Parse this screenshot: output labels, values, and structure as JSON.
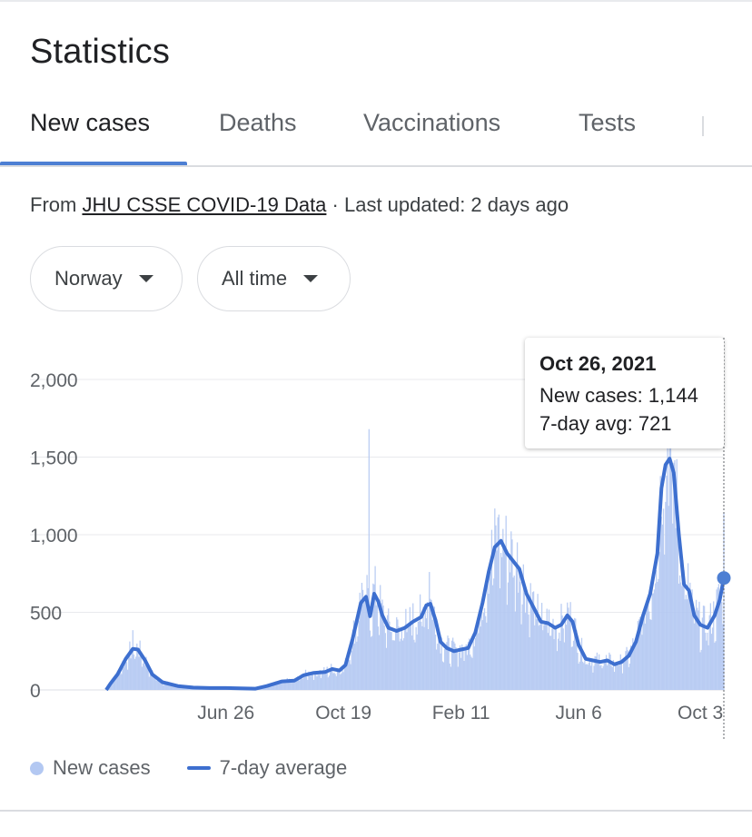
{
  "card": {
    "title": "Statistics"
  },
  "tabs": [
    {
      "label": "New cases",
      "active": true
    },
    {
      "label": "Deaths",
      "active": false
    },
    {
      "label": "Vaccinations",
      "active": false
    },
    {
      "label": "Tests",
      "active": false
    }
  ],
  "source": {
    "prefix": "From",
    "link": "JHU CSSE COVID-19 Data",
    "suffix": "· Last updated: 2 days ago"
  },
  "filters": {
    "country": "Norway",
    "range": "All time"
  },
  "tooltip": {
    "date": "Oct 26, 2021",
    "new_cases_line": "New cases: 1,144",
    "avg_line": "7-day avg: 721"
  },
  "legend": {
    "cases": "New cases",
    "avg": "7-day average"
  },
  "colors": {
    "bars": "#b3c8f2",
    "line": "#3d6fcf",
    "accent": "#4d7fd3",
    "grid": "#e8eaed"
  },
  "chart_data": {
    "type": "bar",
    "title": "",
    "xlabel": "",
    "ylabel": "",
    "ylim": [
      0,
      2000
    ],
    "yticks": [
      0,
      500,
      1000,
      1500,
      2000
    ],
    "ytick_labels": [
      "0",
      "500",
      "1,000",
      "1,500",
      "2,000"
    ],
    "xticks": [
      {
        "label": "Jun 26",
        "date": "2020-06-26"
      },
      {
        "label": "Oct 19",
        "date": "2020-10-19"
      },
      {
        "label": "Feb 11",
        "date": "2021-02-11"
      },
      {
        "label": "Jun 6",
        "date": "2021-06-06"
      },
      {
        "label": "Oct 3",
        "date": "2021-10-03"
      }
    ],
    "legend_position": "bottom-left",
    "grid": true,
    "series": [
      {
        "name": "7-day average",
        "type": "line",
        "points": [
          [
            "2020-03-01",
            0
          ],
          [
            "2020-03-05",
            40
          ],
          [
            "2020-03-12",
            100
          ],
          [
            "2020-03-20",
            200
          ],
          [
            "2020-03-27",
            265
          ],
          [
            "2020-04-01",
            260
          ],
          [
            "2020-04-08",
            190
          ],
          [
            "2020-04-15",
            100
          ],
          [
            "2020-04-25",
            50
          ],
          [
            "2020-05-10",
            25
          ],
          [
            "2020-05-25",
            15
          ],
          [
            "2020-06-10",
            12
          ],
          [
            "2020-06-26",
            12
          ],
          [
            "2020-07-10",
            10
          ],
          [
            "2020-07-25",
            8
          ],
          [
            "2020-08-05",
            25
          ],
          [
            "2020-08-20",
            55
          ],
          [
            "2020-09-01",
            60
          ],
          [
            "2020-09-10",
            95
          ],
          [
            "2020-09-20",
            110
          ],
          [
            "2020-10-01",
            115
          ],
          [
            "2020-10-08",
            135
          ],
          [
            "2020-10-15",
            125
          ],
          [
            "2020-10-21",
            160
          ],
          [
            "2020-10-28",
            330
          ],
          [
            "2020-11-05",
            560
          ],
          [
            "2020-11-10",
            600
          ],
          [
            "2020-11-14",
            475
          ],
          [
            "2020-11-18",
            620
          ],
          [
            "2020-11-22",
            570
          ],
          [
            "2020-11-26",
            480
          ],
          [
            "2020-12-02",
            400
          ],
          [
            "2020-12-10",
            380
          ],
          [
            "2020-12-18",
            400
          ],
          [
            "2020-12-26",
            440
          ],
          [
            "2021-01-03",
            470
          ],
          [
            "2021-01-08",
            545
          ],
          [
            "2021-01-12",
            555
          ],
          [
            "2021-01-17",
            450
          ],
          [
            "2021-01-22",
            310
          ],
          [
            "2021-01-28",
            270
          ],
          [
            "2021-02-04",
            250
          ],
          [
            "2021-02-11",
            260
          ],
          [
            "2021-02-18",
            270
          ],
          [
            "2021-02-25",
            370
          ],
          [
            "2021-03-04",
            560
          ],
          [
            "2021-03-10",
            760
          ],
          [
            "2021-03-16",
            920
          ],
          [
            "2021-03-22",
            960
          ],
          [
            "2021-03-28",
            880
          ],
          [
            "2021-04-03",
            830
          ],
          [
            "2021-04-09",
            780
          ],
          [
            "2021-04-16",
            620
          ],
          [
            "2021-04-23",
            530
          ],
          [
            "2021-04-30",
            440
          ],
          [
            "2021-05-07",
            430
          ],
          [
            "2021-05-14",
            400
          ],
          [
            "2021-05-20",
            420
          ],
          [
            "2021-05-26",
            480
          ],
          [
            "2021-05-31",
            440
          ],
          [
            "2021-06-06",
            290
          ],
          [
            "2021-06-13",
            200
          ],
          [
            "2021-06-20",
            190
          ],
          [
            "2021-06-27",
            180
          ],
          [
            "2021-07-04",
            190
          ],
          [
            "2021-07-11",
            165
          ],
          [
            "2021-07-18",
            180
          ],
          [
            "2021-07-25",
            220
          ],
          [
            "2021-08-01",
            310
          ],
          [
            "2021-08-08",
            480
          ],
          [
            "2021-08-15",
            620
          ],
          [
            "2021-08-22",
            880
          ],
          [
            "2021-08-26",
            1300
          ],
          [
            "2021-08-30",
            1450
          ],
          [
            "2021-09-03",
            1490
          ],
          [
            "2021-09-07",
            1400
          ],
          [
            "2021-09-12",
            1000
          ],
          [
            "2021-09-17",
            680
          ],
          [
            "2021-09-22",
            640
          ],
          [
            "2021-09-27",
            480
          ],
          [
            "2021-10-03",
            420
          ],
          [
            "2021-10-10",
            400
          ],
          [
            "2021-10-17",
            480
          ],
          [
            "2021-10-22",
            580
          ],
          [
            "2021-10-26",
            721
          ]
        ]
      }
    ],
    "bar_sample": [
      [
        "2020-03-27",
        385
      ],
      [
        "2020-11-06",
        690
      ],
      [
        "2020-11-13",
        1680
      ],
      [
        "2021-01-11",
        760
      ],
      [
        "2021-03-20",
        1130
      ],
      [
        "2021-09-01",
        1680
      ],
      [
        "2021-10-26",
        1144
      ]
    ]
  }
}
